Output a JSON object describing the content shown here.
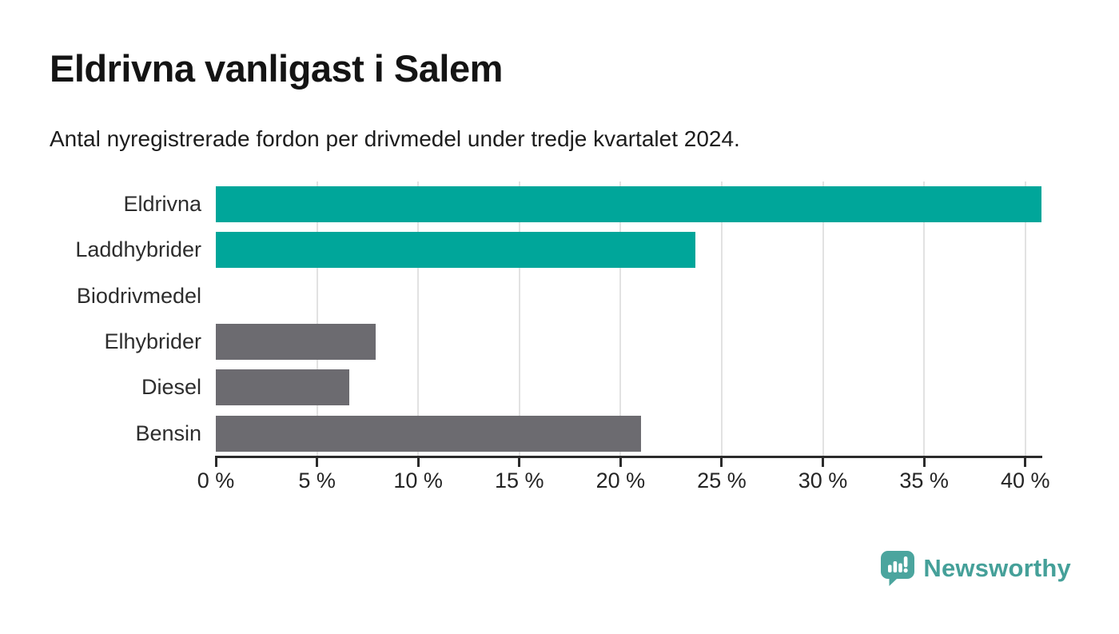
{
  "header": {
    "title": "Eldrivna vanligast i Salem",
    "subtitle": "Antal nyregistrerade fordon per drivmedel under tredje kvartalet 2024."
  },
  "chart_data": {
    "type": "bar",
    "orientation": "horizontal",
    "title": "Eldrivna vanligast i Salem",
    "subtitle": "Antal nyregistrerade fordon per drivmedel under tredje kvartalet 2024.",
    "categories": [
      "Eldrivna",
      "Laddhybrider",
      "Biodrivmedel",
      "Elhybrider",
      "Diesel",
      "Bensin"
    ],
    "values": [
      40.8,
      23.7,
      0,
      7.9,
      6.6,
      21
    ],
    "bar_colors": [
      "#00a69a",
      "#00a69a",
      "#6c6b70",
      "#6c6b70",
      "#6c6b70",
      "#6c6b70"
    ],
    "unit": "%",
    "xlim": [
      0,
      40.8
    ],
    "x_ticks": [
      0,
      5,
      10,
      15,
      20,
      25,
      30,
      35,
      40
    ],
    "x_tick_suffix": " %",
    "grid": "vertical",
    "gridline_ticks": [
      5,
      10,
      15,
      20,
      25,
      30,
      35,
      40
    ],
    "legend": "none",
    "highlight_color": "#00a69a",
    "default_color": "#6c6b70"
  },
  "colors": {
    "background": "#ffffff",
    "teal_accent": "#00a69a",
    "bar_gray": "#6c6b70",
    "gridline": "#e2e2e2",
    "axis": "#2b2b2b",
    "title_text": "#141414",
    "label_text": "#2d2d2d",
    "brand_teal": "#45a099"
  },
  "footer": {
    "brand": "Newsworthy"
  }
}
